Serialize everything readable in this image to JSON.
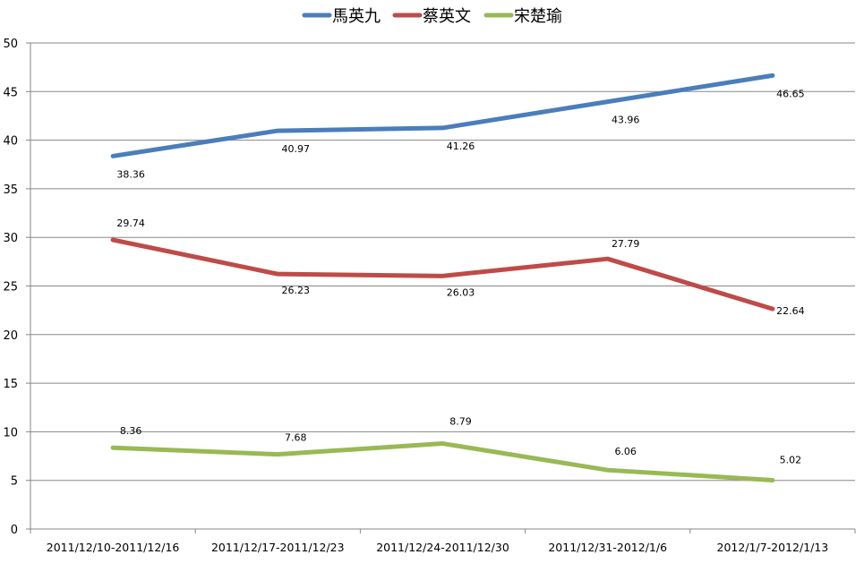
{
  "chart_data": {
    "type": "line",
    "title": "",
    "xlabel": "",
    "ylabel": "",
    "categories": [
      "2011/12/10-2011/12/16",
      "2011/12/17-2011/12/23",
      "2011/12/24-2011/12/30",
      "2011/12/31-2012/1/6",
      "2012/1/7-2012/1/13"
    ],
    "ylim": [
      0,
      50
    ],
    "yticks": [
      0,
      5,
      10,
      15,
      20,
      25,
      30,
      35,
      40,
      45,
      50
    ],
    "grid": true,
    "legend": "top",
    "series": [
      {
        "name": "馬英九",
        "color": "#4a7ebb",
        "values": [
          38.36,
          40.97,
          41.26,
          43.96,
          46.65
        ]
      },
      {
        "name": "蔡英文",
        "color": "#be4b48",
        "values": [
          29.74,
          26.23,
          26.03,
          27.79,
          22.64
        ]
      },
      {
        "name": "宋楚瑜",
        "color": "#98b954",
        "values": [
          8.36,
          7.68,
          8.79,
          6.06,
          5.02
        ]
      }
    ]
  }
}
